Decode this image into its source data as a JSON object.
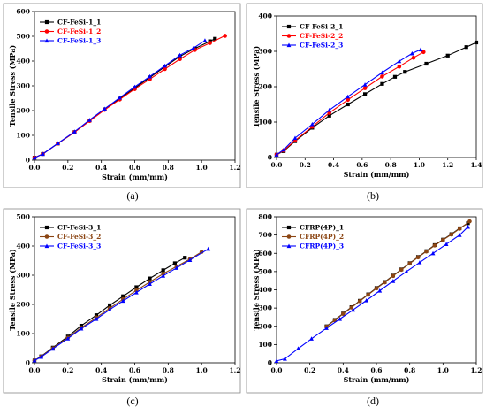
{
  "chart_data": [
    {
      "type": "line",
      "panel_label": "(a)",
      "xlabel": "Strain (mm/mm)",
      "ylabel": "Tensile Stress (MPa)",
      "xlim": [
        0,
        1.2
      ],
      "ylim": [
        0,
        600
      ],
      "xticks": [
        "0.0",
        "0.2",
        "0.4",
        "0.6",
        "0.8",
        "1.0",
        "1.2"
      ],
      "yticks": [
        "0",
        "100",
        "200",
        "300",
        "400",
        "500",
        "600"
      ],
      "legend_position": "top-left",
      "series": [
        {
          "name": "CF-FeSi-1_1",
          "color": "#000000",
          "marker": "square",
          "x": [
            0,
            0.05,
            0.14,
            0.24,
            0.33,
            0.42,
            0.51,
            0.6,
            0.69,
            0.78,
            0.87,
            0.96,
            1.05,
            1.08
          ],
          "y": [
            10,
            25,
            67,
            113,
            160,
            205,
            248,
            291,
            334,
            377,
            419,
            451,
            480,
            490
          ]
        },
        {
          "name": "CF-FeSi-1_2",
          "color": "#ff0000",
          "marker": "circle",
          "x": [
            0,
            0.05,
            0.14,
            0.24,
            0.33,
            0.42,
            0.51,
            0.6,
            0.69,
            0.78,
            0.87,
            0.96,
            1.05,
            1.14
          ],
          "y": [
            10,
            25,
            67,
            113,
            158,
            203,
            245,
            287,
            327,
            368,
            408,
            445,
            473,
            502
          ]
        },
        {
          "name": "CF-FeSi-1_3",
          "color": "#0000ff",
          "marker": "triangle",
          "x": [
            0,
            0.05,
            0.14,
            0.24,
            0.33,
            0.42,
            0.51,
            0.6,
            0.69,
            0.78,
            0.87,
            0.95,
            1.02
          ],
          "y": [
            10,
            25,
            68,
            115,
            162,
            207,
            252,
            296,
            338,
            381,
            424,
            452,
            483
          ]
        }
      ]
    },
    {
      "type": "line",
      "panel_label": "(b)",
      "xlabel": "Strain (mm/mm)",
      "ylabel": "Tensile Stress (MPa)",
      "xlim": [
        0,
        1.4
      ],
      "ylim": [
        0,
        400
      ],
      "xticks": [
        "0.0",
        "0.2",
        "0.4",
        "0.6",
        "0.8",
        "1.0",
        "1.2",
        "1.4"
      ],
      "yticks": [
        "0",
        "100",
        "200",
        "300",
        "400"
      ],
      "legend_position": "top-left",
      "series": [
        {
          "name": "CF-FeSi-2_1",
          "color": "#000000",
          "marker": "square",
          "x": [
            0,
            0.05,
            0.13,
            0.25,
            0.37,
            0.5,
            0.62,
            0.74,
            0.83,
            0.9,
            1.05,
            1.2,
            1.33,
            1.4
          ],
          "y": [
            8,
            18,
            46,
            84,
            118,
            150,
            179,
            208,
            228,
            242,
            265,
            288,
            312,
            325
          ]
        },
        {
          "name": "CF-FeSi-2_2",
          "color": "#ff0000",
          "marker": "circle",
          "x": [
            0,
            0.05,
            0.13,
            0.25,
            0.37,
            0.5,
            0.62,
            0.74,
            0.86,
            0.96,
            1.03
          ],
          "y": [
            8,
            20,
            48,
            87,
            126,
            163,
            196,
            229,
            257,
            282,
            298
          ]
        },
        {
          "name": "CF-FeSi-2_3",
          "color": "#0000ff",
          "marker": "triangle",
          "x": [
            0,
            0.05,
            0.13,
            0.25,
            0.37,
            0.5,
            0.62,
            0.74,
            0.86,
            0.95,
            1.01
          ],
          "y": [
            8,
            22,
            55,
            94,
            134,
            172,
            206,
            240,
            272,
            294,
            305
          ]
        }
      ]
    },
    {
      "type": "line",
      "panel_label": "(c)",
      "xlabel": "Strain (mm/mm)",
      "ylabel": "Tensile Stress (MPa)",
      "xlim": [
        0,
        1.2
      ],
      "ylim": [
        0,
        500
      ],
      "xticks": [
        "0.0",
        "0.2",
        "0.4",
        "0.6",
        "0.8",
        "1.0",
        "1.2"
      ],
      "yticks": [
        "0",
        "100",
        "200",
        "300",
        "400",
        "500"
      ],
      "legend_position": "top-left",
      "series": [
        {
          "name": "CF-FeSi-3_1",
          "color": "#000000",
          "marker": "square",
          "x": [
            0,
            0.04,
            0.11,
            0.2,
            0.28,
            0.37,
            0.45,
            0.53,
            0.61,
            0.69,
            0.77,
            0.84,
            0.9
          ],
          "y": [
            8,
            22,
            52,
            90,
            127,
            163,
            197,
            228,
            259,
            289,
            317,
            341,
            360
          ]
        },
        {
          "name": "CF-FeSi-3_2",
          "color": "#8b4513",
          "marker": "circle",
          "x": [
            0,
            0.04,
            0.11,
            0.2,
            0.28,
            0.37,
            0.45,
            0.53,
            0.61,
            0.69,
            0.77,
            0.85,
            0.93,
            1.0
          ],
          "y": [
            8,
            21,
            50,
            86,
            120,
            155,
            187,
            218,
            248,
            277,
            305,
            330,
            355,
            380
          ]
        },
        {
          "name": "CF-FeSi-3_3",
          "color": "#0000ff",
          "marker": "triangle",
          "x": [
            0,
            0.04,
            0.11,
            0.2,
            0.28,
            0.37,
            0.45,
            0.53,
            0.61,
            0.69,
            0.77,
            0.85,
            0.93,
            1.04
          ],
          "y": [
            8,
            20,
            48,
            83,
            117,
            150,
            182,
            212,
            241,
            270,
            298,
            325,
            352,
            390
          ]
        }
      ]
    },
    {
      "type": "line",
      "panel_label": "(d)",
      "xlabel": "Strain (mm/mm)",
      "ylabel": "Tensile Stress (MPa)",
      "xlim": [
        0,
        1.2
      ],
      "ylim": [
        0,
        800
      ],
      "xticks": [
        "0.0",
        "0.2",
        "0.4",
        "0.6",
        "0.8",
        "1.0",
        "1.2"
      ],
      "yticks": [
        "0",
        "100",
        "200",
        "300",
        "400",
        "500",
        "600",
        "700",
        "800"
      ],
      "legend_position": "top-left",
      "series": [
        {
          "name": "CFRP(4P)_1",
          "color": "#000000",
          "marker": "square",
          "x": [
            0.3,
            0.35,
            0.4,
            0.45,
            0.5,
            0.55,
            0.6,
            0.65,
            0.7,
            0.75,
            0.8,
            0.85,
            0.9,
            0.95,
            1.0,
            1.05,
            1.1,
            1.15
          ],
          "y": [
            200,
            235,
            270,
            305,
            340,
            375,
            410,
            443,
            478,
            512,
            546,
            580,
            612,
            645,
            675,
            705,
            737,
            765
          ]
        },
        {
          "name": "CFRP(4P)_2",
          "color": "#8b4513",
          "marker": "circle",
          "x": [
            0.3,
            0.35,
            0.4,
            0.45,
            0.5,
            0.55,
            0.6,
            0.65,
            0.7,
            0.75,
            0.8,
            0.85,
            0.9,
            0.95,
            1.0,
            1.05,
            1.1,
            1.16
          ],
          "y": [
            198,
            233,
            268,
            303,
            338,
            373,
            408,
            441,
            476,
            510,
            544,
            578,
            610,
            643,
            673,
            703,
            735,
            775
          ]
        },
        {
          "name": "CFRP(4P)_3",
          "color": "#0000ff",
          "marker": "triangle",
          "x": [
            0,
            0.05,
            0.13,
            0.21,
            0.3,
            0.38,
            0.46,
            0.54,
            0.62,
            0.7,
            0.78,
            0.86,
            0.94,
            1.02,
            1.1,
            1.15
          ],
          "y": [
            10,
            22,
            78,
            132,
            190,
            240,
            290,
            342,
            395,
            448,
            500,
            550,
            600,
            650,
            700,
            745
          ]
        }
      ]
    }
  ]
}
